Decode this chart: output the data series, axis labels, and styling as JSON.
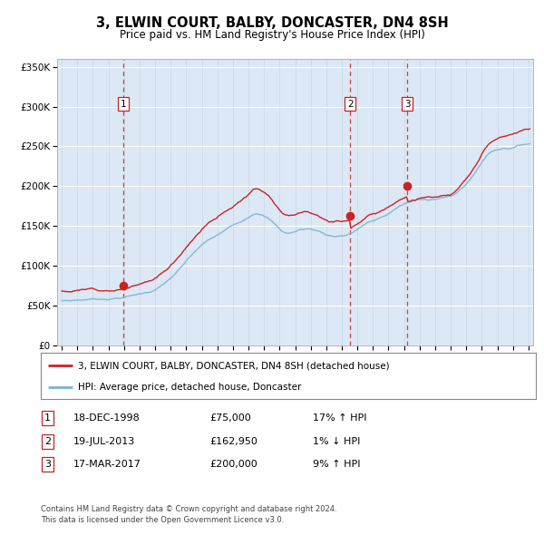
{
  "title": "3, ELWIN COURT, BALBY, DONCASTER, DN4 8SH",
  "subtitle": "Price paid vs. HM Land Registry's House Price Index (HPI)",
  "legend_line1": "3, ELWIN COURT, BALBY, DONCASTER, DN4 8SH (detached house)",
  "legend_line2": "HPI: Average price, detached house, Doncaster",
  "footer1": "Contains HM Land Registry data © Crown copyright and database right 2024.",
  "footer2": "This data is licensed under the Open Government Licence v3.0.",
  "transactions": [
    {
      "num": 1,
      "date": "18-DEC-1998",
      "price": "£75,000",
      "hpi": "17% ↑ HPI",
      "year": 1998.96
    },
    {
      "num": 2,
      "date": "19-JUL-2013",
      "price": "£162,950",
      "hpi": "1% ↓ HPI",
      "year": 2013.54
    },
    {
      "num": 3,
      "date": "17-MAR-2017",
      "price": "£200,000",
      "hpi": "9% ↑ HPI",
      "year": 2017.21
    }
  ],
  "sale_prices": [
    75000,
    162950,
    200000
  ],
  "hpi_color": "#7ab3d4",
  "price_color": "#cc2222",
  "vline_color": "#cc2222",
  "bg_color": "#dce8f5",
  "ylim": [
    0,
    360000
  ],
  "yticks": [
    0,
    50000,
    100000,
    150000,
    200000,
    250000,
    300000,
    350000
  ],
  "xmin": 1994.7,
  "xmax": 2025.3
}
